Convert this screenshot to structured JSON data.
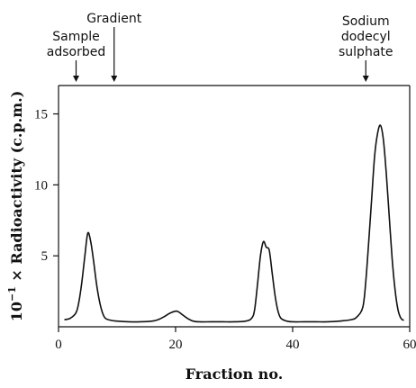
{
  "chart_data": {
    "type": "line",
    "title": "",
    "xlabel": "Fraction no.",
    "ylabel": {
      "prefix": "10",
      "exponent": "−1",
      "suffix": " × Radioactivity (c.p.m.)"
    },
    "xlim": [
      0,
      60
    ],
    "ylim": [
      0,
      17
    ],
    "xticks": [
      0,
      20,
      40,
      60
    ],
    "yticks": [
      5,
      10,
      15
    ],
    "x_tick_labels": [
      "0",
      "20",
      "40",
      "60"
    ],
    "y_tick_labels": [
      "5",
      "10",
      "15"
    ],
    "grid": false,
    "series": [
      {
        "x": [
          1,
          2,
          3,
          3.5,
          4,
          4.5,
          5,
          5.5,
          6,
          6.5,
          7,
          7.5,
          8,
          9,
          10,
          12,
          14,
          16,
          17,
          18,
          19,
          20,
          20.5,
          21,
          22,
          23,
          24,
          26,
          28,
          30,
          32,
          33,
          33.5,
          34,
          34.5,
          35,
          35.5,
          36,
          36.5,
          37,
          37.5,
          38,
          39,
          40,
          42,
          44,
          46,
          48,
          50,
          51,
          52,
          52.5,
          53,
          53.5,
          54,
          54.5,
          55,
          55.5,
          56,
          56.5,
          57,
          57.5,
          58,
          58.5,
          59
        ],
        "y": [
          0.5,
          0.6,
          1.0,
          1.8,
          3.2,
          5.0,
          6.6,
          6.0,
          4.6,
          3.0,
          1.8,
          1.0,
          0.6,
          0.45,
          0.4,
          0.35,
          0.35,
          0.4,
          0.5,
          0.7,
          0.95,
          1.1,
          1.05,
          0.9,
          0.6,
          0.4,
          0.35,
          0.35,
          0.35,
          0.35,
          0.4,
          0.6,
          1.2,
          3.0,
          5.0,
          6.0,
          5.6,
          5.4,
          3.8,
          2.2,
          1.1,
          0.6,
          0.4,
          0.35,
          0.35,
          0.35,
          0.35,
          0.4,
          0.5,
          0.7,
          1.4,
          3.2,
          6.0,
          9.0,
          12.0,
          13.6,
          14.2,
          13.2,
          10.8,
          7.8,
          4.8,
          2.6,
          1.2,
          0.6,
          0.45
        ]
      }
    ],
    "annotations": [
      {
        "lines": [
          "Sample",
          "adsorbed"
        ],
        "x": 3
      },
      {
        "lines": [
          "Gradient"
        ],
        "x": 9.5
      },
      {
        "lines": [
          "Sodium",
          "dodecyl",
          "sulphate"
        ],
        "x": 52.5
      }
    ]
  }
}
